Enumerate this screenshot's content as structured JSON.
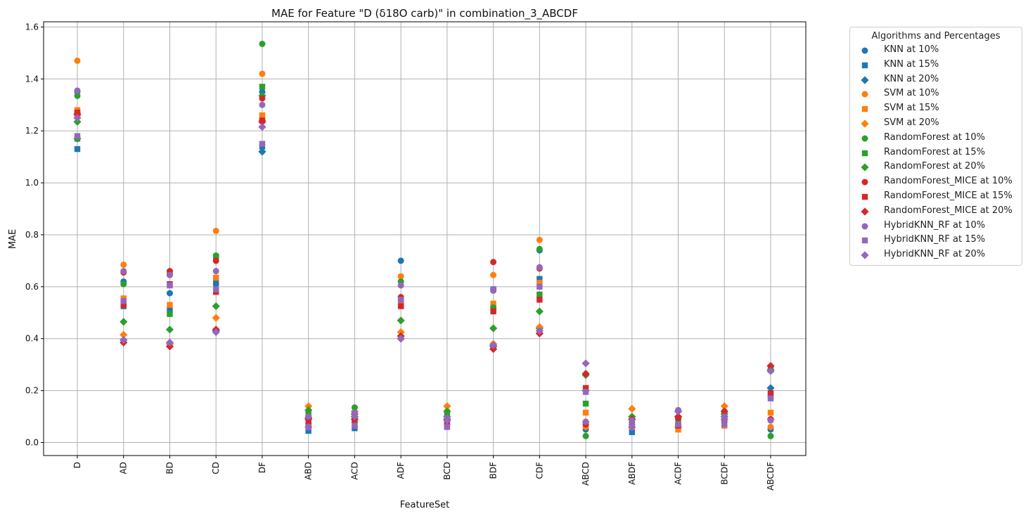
{
  "chart_data": {
    "type": "scatter",
    "title": "MAE for Feature \"D (δ18O carb)\" in combination_3_ABCDF",
    "xlabel": "FeatureSet",
    "ylabel": "MAE",
    "ylim": [
      -0.05,
      1.62
    ],
    "yticks": [
      "0.0",
      "0.2",
      "0.4",
      "0.6",
      "0.8",
      "1.0",
      "1.2",
      "1.4",
      "1.6"
    ],
    "grid": true,
    "legend_title": "Algorithms and Percentages",
    "legend_position": "outside-right",
    "categories": [
      "D",
      "AD",
      "BD",
      "CD",
      "DF",
      "ABD",
      "ACD",
      "ADF",
      "BCD",
      "BDF",
      "CDF",
      "ABCD",
      "ABDF",
      "ACDF",
      "BCDF",
      "ABCDF"
    ],
    "series": [
      {
        "name": "KNN at 10%",
        "color": "#1f77b4",
        "marker": "circle",
        "values": [
          1.35,
          0.62,
          0.575,
          0.61,
          1.35,
          0.06,
          0.06,
          0.7,
          0.08,
          0.59,
          0.74,
          0.05,
          0.05,
          0.06,
          0.12,
          0.05
        ]
      },
      {
        "name": "KNN at 15%",
        "color": "#1f77b4",
        "marker": "square",
        "values": [
          1.13,
          0.525,
          0.51,
          0.615,
          1.14,
          0.045,
          0.055,
          0.55,
          0.06,
          0.59,
          0.63,
          0.07,
          0.04,
          0.065,
          0.09,
          0.18
        ]
      },
      {
        "name": "KNN at 20%",
        "color": "#1f77b4",
        "marker": "diamond",
        "values": [
          1.17,
          0.395,
          0.38,
          0.43,
          1.12,
          0.09,
          0.11,
          0.4,
          0.1,
          0.37,
          0.44,
          0.2,
          0.09,
          0.12,
          0.1,
          0.21
        ]
      },
      {
        "name": "SVM at 10%",
        "color": "#ff7f0e",
        "marker": "circle",
        "values": [
          1.47,
          0.685,
          0.645,
          0.815,
          1.42,
          0.1,
          0.1,
          0.64,
          0.1,
          0.645,
          0.78,
          0.06,
          0.07,
          0.07,
          0.08,
          0.06
        ]
      },
      {
        "name": "SVM at 15%",
        "color": "#ff7f0e",
        "marker": "square",
        "values": [
          1.28,
          0.555,
          0.53,
          0.635,
          1.26,
          0.08,
          0.07,
          0.53,
          0.07,
          0.535,
          0.615,
          0.115,
          0.06,
          0.05,
          0.065,
          0.115
        ]
      },
      {
        "name": "SVM at 20%",
        "color": "#ff7f0e",
        "marker": "diamond",
        "values": [
          1.26,
          0.415,
          0.38,
          0.48,
          1.24,
          0.14,
          0.12,
          0.425,
          0.14,
          0.38,
          0.445,
          0.08,
          0.13,
          0.06,
          0.14,
          0.09
        ]
      },
      {
        "name": "RandomForest at 10%",
        "color": "#2ca02c",
        "marker": "circle",
        "values": [
          1.335,
          0.61,
          0.65,
          0.72,
          1.535,
          0.1,
          0.135,
          0.62,
          0.12,
          0.52,
          0.745,
          0.025,
          0.08,
          0.09,
          0.1,
          0.025
        ]
      },
      {
        "name": "RandomForest at 15%",
        "color": "#2ca02c",
        "marker": "square",
        "values": [
          1.17,
          0.535,
          0.495,
          0.715,
          1.37,
          0.11,
          0.09,
          0.55,
          0.11,
          0.515,
          0.57,
          0.15,
          0.08,
          0.09,
          0.11,
          0.28
        ]
      },
      {
        "name": "RandomForest at 20%",
        "color": "#2ca02c",
        "marker": "diamond",
        "values": [
          1.235,
          0.465,
          0.435,
          0.525,
          1.335,
          0.125,
          0.09,
          0.47,
          0.12,
          0.44,
          0.505,
          0.26,
          0.1,
          0.1,
          0.11,
          0.28
        ]
      },
      {
        "name": "RandomForest_MICE at 10%",
        "color": "#d62728",
        "marker": "circle",
        "values": [
          1.27,
          0.655,
          0.66,
          0.7,
          1.325,
          0.07,
          0.09,
          0.56,
          0.07,
          0.695,
          0.67,
          0.07,
          0.07,
          0.095,
          0.09,
          0.09
        ]
      },
      {
        "name": "RandomForest_MICE at 15%",
        "color": "#d62728",
        "marker": "square",
        "values": [
          1.27,
          0.53,
          0.61,
          0.58,
          1.24,
          0.085,
          0.085,
          0.525,
          0.08,
          0.505,
          0.55,
          0.21,
          0.07,
          0.065,
          0.09,
          0.19
        ]
      },
      {
        "name": "RandomForest_MICE at 20%",
        "color": "#d62728",
        "marker": "diamond",
        "values": [
          1.265,
          0.385,
          0.37,
          0.435,
          1.235,
          0.095,
          0.1,
          0.41,
          0.09,
          0.36,
          0.42,
          0.265,
          0.09,
          0.1,
          0.12,
          0.295
        ]
      },
      {
        "name": "HybridKNN_RF at 10%",
        "color": "#9467bd",
        "marker": "circle",
        "values": [
          1.355,
          0.66,
          0.645,
          0.66,
          1.3,
          0.1,
          0.115,
          0.605,
          0.095,
          0.585,
          0.675,
          0.08,
          0.085,
          0.125,
          0.1,
          0.085
        ]
      },
      {
        "name": "HybridKNN_RF at 15%",
        "color": "#9467bd",
        "marker": "square",
        "values": [
          1.18,
          0.545,
          0.605,
          0.59,
          1.15,
          0.06,
          0.065,
          0.55,
          0.06,
          0.59,
          0.6,
          0.195,
          0.065,
          0.07,
          0.07,
          0.17
        ]
      },
      {
        "name": "HybridKNN_RF at 20%",
        "color": "#9467bd",
        "marker": "diamond",
        "values": [
          1.25,
          0.395,
          0.385,
          0.425,
          1.215,
          0.06,
          0.1,
          0.4,
          0.085,
          0.375,
          0.43,
          0.305,
          0.06,
          0.12,
          0.09,
          0.275
        ]
      }
    ]
  }
}
